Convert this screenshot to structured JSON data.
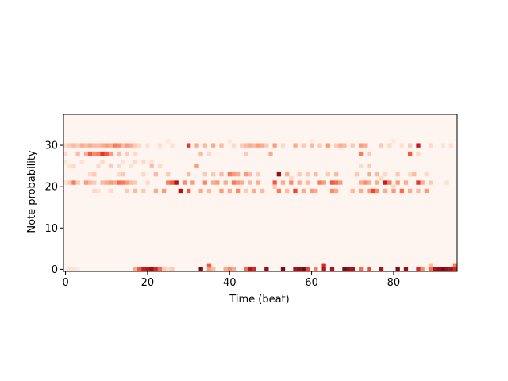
{
  "chart_data": {
    "type": "heatmap",
    "title": "",
    "xlabel": "Time (beat)",
    "ylabel": "Note probability",
    "x_ticks": [
      0,
      20,
      40,
      60,
      80
    ],
    "y_ticks": [
      0,
      10,
      20,
      30
    ],
    "xlim": [
      -0.5,
      95.5
    ],
    "ylim": [
      -0.5,
      37.5
    ],
    "colormap": "Reds",
    "background_color": "#fff5f0",
    "n_steps": 96,
    "n_notes": 38,
    "cells": [
      {
        "x": 1,
        "y": 0,
        "v": 0.12
      },
      {
        "x": 2,
        "y": 0,
        "v": 0.1
      },
      {
        "x": 3,
        "y": 0,
        "v": 0.08
      },
      {
        "x": 17,
        "y": 0,
        "v": 0.3
      },
      {
        "x": 18,
        "y": 0,
        "v": 0.55
      },
      {
        "x": 19,
        "y": 0,
        "v": 0.75
      },
      {
        "x": 20,
        "y": 0,
        "v": 0.8
      },
      {
        "x": 21,
        "y": 0,
        "v": 0.9
      },
      {
        "x": 22,
        "y": 0,
        "v": 0.7
      },
      {
        "x": 23,
        "y": 0,
        "v": 0.5
      },
      {
        "x": 24,
        "y": 0,
        "v": 0.2
      },
      {
        "x": 25,
        "y": 0,
        "v": 0.15
      },
      {
        "x": 26,
        "y": 0,
        "v": 0.2
      },
      {
        "x": 33,
        "y": 0,
        "v": 0.95
      },
      {
        "x": 35,
        "y": 0,
        "v": 0.35
      },
      {
        "x": 36,
        "y": 0,
        "v": 0.25
      },
      {
        "x": 39,
        "y": 0,
        "v": 0.3
      },
      {
        "x": 40,
        "y": 0,
        "v": 0.4
      },
      {
        "x": 41,
        "y": 0,
        "v": 0.3
      },
      {
        "x": 44,
        "y": 0,
        "v": 0.5
      },
      {
        "x": 45,
        "y": 0,
        "v": 0.8
      },
      {
        "x": 46,
        "y": 0,
        "v": 0.7
      },
      {
        "x": 49,
        "y": 0,
        "v": 0.9
      },
      {
        "x": 53,
        "y": 0,
        "v": 0.95
      },
      {
        "x": 56,
        "y": 0,
        "v": 0.85
      },
      {
        "x": 57,
        "y": 0,
        "v": 0.9
      },
      {
        "x": 58,
        "y": 0,
        "v": 0.95
      },
      {
        "x": 59,
        "y": 0,
        "v": 0.6
      },
      {
        "x": 61,
        "y": 0,
        "v": 0.45
      },
      {
        "x": 63,
        "y": 0,
        "v": 0.8
      },
      {
        "x": 65,
        "y": 0,
        "v": 0.85
      },
      {
        "x": 68,
        "y": 0,
        "v": 0.95
      },
      {
        "x": 69,
        "y": 0,
        "v": 0.9
      },
      {
        "x": 70,
        "y": 0,
        "v": 0.85
      },
      {
        "x": 72,
        "y": 0,
        "v": 0.5
      },
      {
        "x": 74,
        "y": 0,
        "v": 0.6
      },
      {
        "x": 77,
        "y": 0,
        "v": 0.85
      },
      {
        "x": 81,
        "y": 0,
        "v": 0.95
      },
      {
        "x": 83,
        "y": 0,
        "v": 0.9
      },
      {
        "x": 86,
        "y": 0,
        "v": 0.7
      },
      {
        "x": 87,
        "y": 0,
        "v": 0.4
      },
      {
        "x": 89,
        "y": 0,
        "v": 0.5
      },
      {
        "x": 90,
        "y": 0,
        "v": 0.85
      },
      {
        "x": 91,
        "y": 0,
        "v": 0.9
      },
      {
        "x": 92,
        "y": 0,
        "v": 0.95
      },
      {
        "x": 93,
        "y": 0,
        "v": 0.9
      },
      {
        "x": 94,
        "y": 0,
        "v": 0.85
      },
      {
        "x": 95,
        "y": 0,
        "v": 0.7
      },
      {
        "x": 35,
        "y": 1,
        "v": 0.55
      },
      {
        "x": 63,
        "y": 1,
        "v": 0.7
      },
      {
        "x": 89,
        "y": 1,
        "v": 0.25
      },
      {
        "x": 95,
        "y": 1,
        "v": 0.45
      },
      {
        "x": 7,
        "y": 19,
        "v": 0.15
      },
      {
        "x": 8,
        "y": 19,
        "v": 0.12
      },
      {
        "x": 11,
        "y": 19,
        "v": 0.15
      },
      {
        "x": 15,
        "y": 19,
        "v": 0.2
      },
      {
        "x": 17,
        "y": 19,
        "v": 0.25
      },
      {
        "x": 19,
        "y": 19,
        "v": 0.2
      },
      {
        "x": 22,
        "y": 19,
        "v": 0.3
      },
      {
        "x": 24,
        "y": 19,
        "v": 0.35
      },
      {
        "x": 28,
        "y": 19,
        "v": 0.85
      },
      {
        "x": 30,
        "y": 19,
        "v": 0.55
      },
      {
        "x": 33,
        "y": 19,
        "v": 0.3
      },
      {
        "x": 35,
        "y": 19,
        "v": 0.25
      },
      {
        "x": 38,
        "y": 19,
        "v": 0.35
      },
      {
        "x": 40,
        "y": 19,
        "v": 0.3
      },
      {
        "x": 42,
        "y": 19,
        "v": 0.4
      },
      {
        "x": 44,
        "y": 19,
        "v": 0.2
      },
      {
        "x": 46,
        "y": 19,
        "v": 0.3
      },
      {
        "x": 48,
        "y": 19,
        "v": 0.25
      },
      {
        "x": 52,
        "y": 19,
        "v": 0.45
      },
      {
        "x": 54,
        "y": 19,
        "v": 0.25
      },
      {
        "x": 56,
        "y": 19,
        "v": 0.6
      },
      {
        "x": 58,
        "y": 19,
        "v": 0.3
      },
      {
        "x": 60,
        "y": 19,
        "v": 0.35
      },
      {
        "x": 61,
        "y": 19,
        "v": 0.3
      },
      {
        "x": 65,
        "y": 19,
        "v": 0.4
      },
      {
        "x": 66,
        "y": 19,
        "v": 0.3
      },
      {
        "x": 70,
        "y": 19,
        "v": 0.25
      },
      {
        "x": 72,
        "y": 19,
        "v": 0.3
      },
      {
        "x": 74,
        "y": 19,
        "v": 0.35
      },
      {
        "x": 75,
        "y": 19,
        "v": 0.6
      },
      {
        "x": 76,
        "y": 19,
        "v": 0.4
      },
      {
        "x": 78,
        "y": 19,
        "v": 0.3
      },
      {
        "x": 80,
        "y": 19,
        "v": 0.35
      },
      {
        "x": 82,
        "y": 19,
        "v": 0.5
      },
      {
        "x": 84,
        "y": 19,
        "v": 0.3
      },
      {
        "x": 86,
        "y": 19,
        "v": 0.25
      },
      {
        "x": 88,
        "y": 19,
        "v": 0.35
      },
      {
        "x": 0,
        "y": 21,
        "v": 0.12
      },
      {
        "x": 1,
        "y": 21,
        "v": 0.2
      },
      {
        "x": 2,
        "y": 21,
        "v": 0.45
      },
      {
        "x": 3,
        "y": 21,
        "v": 0.2
      },
      {
        "x": 5,
        "y": 21,
        "v": 0.35
      },
      {
        "x": 6,
        "y": 21,
        "v": 0.25
      },
      {
        "x": 7,
        "y": 21,
        "v": 0.2
      },
      {
        "x": 9,
        "y": 21,
        "v": 0.25
      },
      {
        "x": 10,
        "y": 21,
        "v": 0.3
      },
      {
        "x": 11,
        "y": 21,
        "v": 0.35
      },
      {
        "x": 12,
        "y": 21,
        "v": 0.3
      },
      {
        "x": 13,
        "y": 21,
        "v": 0.5
      },
      {
        "x": 14,
        "y": 21,
        "v": 0.45
      },
      {
        "x": 15,
        "y": 21,
        "v": 0.35
      },
      {
        "x": 16,
        "y": 21,
        "v": 0.25
      },
      {
        "x": 17,
        "y": 21,
        "v": 0.2
      },
      {
        "x": 20,
        "y": 21,
        "v": 0.15
      },
      {
        "x": 25,
        "y": 21,
        "v": 0.45
      },
      {
        "x": 26,
        "y": 21,
        "v": 0.55
      },
      {
        "x": 27,
        "y": 21,
        "v": 0.85
      },
      {
        "x": 29,
        "y": 21,
        "v": 0.4
      },
      {
        "x": 31,
        "y": 21,
        "v": 0.35
      },
      {
        "x": 34,
        "y": 21,
        "v": 0.4
      },
      {
        "x": 36,
        "y": 21,
        "v": 0.3
      },
      {
        "x": 37,
        "y": 21,
        "v": 0.35
      },
      {
        "x": 39,
        "y": 21,
        "v": 0.3
      },
      {
        "x": 41,
        "y": 21,
        "v": 0.45
      },
      {
        "x": 42,
        "y": 21,
        "v": 0.35
      },
      {
        "x": 43,
        "y": 21,
        "v": 0.3
      },
      {
        "x": 45,
        "y": 21,
        "v": 0.25
      },
      {
        "x": 47,
        "y": 21,
        "v": 0.3
      },
      {
        "x": 51,
        "y": 21,
        "v": 0.55
      },
      {
        "x": 53,
        "y": 21,
        "v": 0.3
      },
      {
        "x": 55,
        "y": 21,
        "v": 0.4
      },
      {
        "x": 57,
        "y": 21,
        "v": 0.3
      },
      {
        "x": 59,
        "y": 21,
        "v": 0.25
      },
      {
        "x": 62,
        "y": 21,
        "v": 0.45
      },
      {
        "x": 63,
        "y": 21,
        "v": 0.35
      },
      {
        "x": 65,
        "y": 21,
        "v": 0.55
      },
      {
        "x": 66,
        "y": 21,
        "v": 0.5
      },
      {
        "x": 67,
        "y": 21,
        "v": 0.35
      },
      {
        "x": 72,
        "y": 21,
        "v": 0.3
      },
      {
        "x": 73,
        "y": 21,
        "v": 0.4
      },
      {
        "x": 74,
        "y": 21,
        "v": 0.3
      },
      {
        "x": 76,
        "y": 21,
        "v": 0.3
      },
      {
        "x": 78,
        "y": 21,
        "v": 0.75
      },
      {
        "x": 79,
        "y": 21,
        "v": 0.45
      },
      {
        "x": 81,
        "y": 21,
        "v": 0.35
      },
      {
        "x": 83,
        "y": 21,
        "v": 0.3
      },
      {
        "x": 86,
        "y": 21,
        "v": 0.65
      },
      {
        "x": 87,
        "y": 21,
        "v": 0.3
      },
      {
        "x": 89,
        "y": 21,
        "v": 0.2
      },
      {
        "x": 93,
        "y": 21,
        "v": 0.12
      },
      {
        "x": 51,
        "y": 20,
        "v": 0.2
      },
      {
        "x": 80,
        "y": 20,
        "v": 0.15
      },
      {
        "x": 55,
        "y": 22,
        "v": 0.15
      },
      {
        "x": 77,
        "y": 22,
        "v": 0.15
      },
      {
        "x": 6,
        "y": 23,
        "v": 0.15
      },
      {
        "x": 7,
        "y": 23,
        "v": 0.2
      },
      {
        "x": 13,
        "y": 23,
        "v": 0.15
      },
      {
        "x": 14,
        "y": 23,
        "v": 0.2
      },
      {
        "x": 19,
        "y": 23,
        "v": 0.15
      },
      {
        "x": 22,
        "y": 23,
        "v": 0.25
      },
      {
        "x": 25,
        "y": 23,
        "v": 0.2
      },
      {
        "x": 30,
        "y": 23,
        "v": 0.25
      },
      {
        "x": 34,
        "y": 23,
        "v": 0.2
      },
      {
        "x": 36,
        "y": 23,
        "v": 0.2
      },
      {
        "x": 38,
        "y": 23,
        "v": 0.25
      },
      {
        "x": 40,
        "y": 23,
        "v": 0.45
      },
      {
        "x": 41,
        "y": 23,
        "v": 0.35
      },
      {
        "x": 42,
        "y": 23,
        "v": 0.3
      },
      {
        "x": 44,
        "y": 23,
        "v": 0.35
      },
      {
        "x": 45,
        "y": 23,
        "v": 0.25
      },
      {
        "x": 47,
        "y": 23,
        "v": 0.2
      },
      {
        "x": 52,
        "y": 23,
        "v": 0.9
      },
      {
        "x": 54,
        "y": 23,
        "v": 0.3
      },
      {
        "x": 57,
        "y": 23,
        "v": 0.2
      },
      {
        "x": 59,
        "y": 23,
        "v": 0.2
      },
      {
        "x": 61,
        "y": 23,
        "v": 0.25
      },
      {
        "x": 64,
        "y": 23,
        "v": 0.2
      },
      {
        "x": 66,
        "y": 23,
        "v": 0.25
      },
      {
        "x": 71,
        "y": 23,
        "v": 0.2
      },
      {
        "x": 74,
        "y": 23,
        "v": 0.3
      },
      {
        "x": 76,
        "y": 23,
        "v": 0.25
      },
      {
        "x": 78,
        "y": 23,
        "v": 0.15
      },
      {
        "x": 81,
        "y": 23,
        "v": 0.2
      },
      {
        "x": 84,
        "y": 23,
        "v": 0.15
      },
      {
        "x": 85,
        "y": 23,
        "v": 0.25
      },
      {
        "x": 88,
        "y": 23,
        "v": 0.15
      },
      {
        "x": 1,
        "y": 25,
        "v": 0.12
      },
      {
        "x": 2,
        "y": 25,
        "v": 0.15
      },
      {
        "x": 8,
        "y": 25,
        "v": 0.15
      },
      {
        "x": 11,
        "y": 25,
        "v": 0.2
      },
      {
        "x": 13,
        "y": 25,
        "v": 0.15
      },
      {
        "x": 16,
        "y": 25,
        "v": 0.12
      },
      {
        "x": 21,
        "y": 25,
        "v": 0.25
      },
      {
        "x": 23,
        "y": 25,
        "v": 0.15
      },
      {
        "x": 32,
        "y": 25,
        "v": 0.35
      },
      {
        "x": 72,
        "y": 25,
        "v": 0.15
      },
      {
        "x": 74,
        "y": 25,
        "v": 0.2
      },
      {
        "x": 0,
        "y": 26,
        "v": 0.1
      },
      {
        "x": 4,
        "y": 26,
        "v": 0.12
      },
      {
        "x": 9,
        "y": 26,
        "v": 0.15
      },
      {
        "x": 14,
        "y": 26,
        "v": 0.12
      },
      {
        "x": 17,
        "y": 26,
        "v": 0.15
      },
      {
        "x": 19,
        "y": 26,
        "v": 0.15
      },
      {
        "x": 21,
        "y": 26,
        "v": 0.12
      },
      {
        "x": 0,
        "y": 28,
        "v": 0.15
      },
      {
        "x": 3,
        "y": 28,
        "v": 0.25
      },
      {
        "x": 5,
        "y": 28,
        "v": 0.3
      },
      {
        "x": 6,
        "y": 28,
        "v": 0.55
      },
      {
        "x": 7,
        "y": 28,
        "v": 0.4
      },
      {
        "x": 8,
        "y": 28,
        "v": 0.45
      },
      {
        "x": 9,
        "y": 28,
        "v": 0.65
      },
      {
        "x": 10,
        "y": 28,
        "v": 0.55
      },
      {
        "x": 11,
        "y": 28,
        "v": 0.35
      },
      {
        "x": 13,
        "y": 28,
        "v": 0.25
      },
      {
        "x": 15,
        "y": 28,
        "v": 0.2
      },
      {
        "x": 17,
        "y": 28,
        "v": 0.15
      },
      {
        "x": 33,
        "y": 28,
        "v": 0.25
      },
      {
        "x": 35,
        "y": 28,
        "v": 0.15
      },
      {
        "x": 44,
        "y": 28,
        "v": 0.2
      },
      {
        "x": 50,
        "y": 28,
        "v": 0.3
      },
      {
        "x": 72,
        "y": 28,
        "v": 0.45
      },
      {
        "x": 74,
        "y": 28,
        "v": 0.2
      },
      {
        "x": 84,
        "y": 28,
        "v": 0.55
      },
      {
        "x": 86,
        "y": 28,
        "v": 0.15
      },
      {
        "x": 0,
        "y": 30,
        "v": 0.15
      },
      {
        "x": 1,
        "y": 30,
        "v": 0.2
      },
      {
        "x": 2,
        "y": 30,
        "v": 0.25
      },
      {
        "x": 3,
        "y": 30,
        "v": 0.2
      },
      {
        "x": 4,
        "y": 30,
        "v": 0.3
      },
      {
        "x": 5,
        "y": 30,
        "v": 0.25
      },
      {
        "x": 6,
        "y": 30,
        "v": 0.3
      },
      {
        "x": 7,
        "y": 30,
        "v": 0.25
      },
      {
        "x": 8,
        "y": 30,
        "v": 0.25
      },
      {
        "x": 9,
        "y": 30,
        "v": 0.3
      },
      {
        "x": 10,
        "y": 30,
        "v": 0.35
      },
      {
        "x": 11,
        "y": 30,
        "v": 0.3
      },
      {
        "x": 12,
        "y": 30,
        "v": 0.45
      },
      {
        "x": 13,
        "y": 30,
        "v": 0.4
      },
      {
        "x": 14,
        "y": 30,
        "v": 0.25
      },
      {
        "x": 15,
        "y": 30,
        "v": 0.35
      },
      {
        "x": 16,
        "y": 30,
        "v": 0.3
      },
      {
        "x": 17,
        "y": 30,
        "v": 0.2
      },
      {
        "x": 18,
        "y": 30,
        "v": 0.15
      },
      {
        "x": 20,
        "y": 30,
        "v": 0.12
      },
      {
        "x": 23,
        "y": 30,
        "v": 0.12
      },
      {
        "x": 26,
        "y": 30,
        "v": 0.12
      },
      {
        "x": 30,
        "y": 30,
        "v": 0.65
      },
      {
        "x": 32,
        "y": 30,
        "v": 0.3
      },
      {
        "x": 34,
        "y": 30,
        "v": 0.25
      },
      {
        "x": 36,
        "y": 30,
        "v": 0.3
      },
      {
        "x": 38,
        "y": 30,
        "v": 0.25
      },
      {
        "x": 41,
        "y": 30,
        "v": 0.15
      },
      {
        "x": 43,
        "y": 30,
        "v": 0.2
      },
      {
        "x": 44,
        "y": 30,
        "v": 0.25
      },
      {
        "x": 45,
        "y": 30,
        "v": 0.3
      },
      {
        "x": 46,
        "y": 30,
        "v": 0.25
      },
      {
        "x": 47,
        "y": 30,
        "v": 0.35
      },
      {
        "x": 48,
        "y": 30,
        "v": 0.3
      },
      {
        "x": 49,
        "y": 30,
        "v": 0.2
      },
      {
        "x": 51,
        "y": 30,
        "v": 0.35
      },
      {
        "x": 53,
        "y": 30,
        "v": 0.15
      },
      {
        "x": 56,
        "y": 30,
        "v": 0.3
      },
      {
        "x": 58,
        "y": 30,
        "v": 0.2
      },
      {
        "x": 60,
        "y": 30,
        "v": 0.25
      },
      {
        "x": 62,
        "y": 30,
        "v": 0.2
      },
      {
        "x": 64,
        "y": 30,
        "v": 0.35
      },
      {
        "x": 66,
        "y": 30,
        "v": 0.2
      },
      {
        "x": 67,
        "y": 30,
        "v": 0.3
      },
      {
        "x": 68,
        "y": 30,
        "v": 0.25
      },
      {
        "x": 70,
        "y": 30,
        "v": 0.2
      },
      {
        "x": 72,
        "y": 30,
        "v": 0.35
      },
      {
        "x": 73,
        "y": 30,
        "v": 0.3
      },
      {
        "x": 77,
        "y": 30,
        "v": 0.2
      },
      {
        "x": 79,
        "y": 30,
        "v": 0.15
      },
      {
        "x": 82,
        "y": 30,
        "v": 0.12
      },
      {
        "x": 84,
        "y": 30,
        "v": 0.2
      },
      {
        "x": 86,
        "y": 30,
        "v": 0.75
      },
      {
        "x": 89,
        "y": 30,
        "v": 0.15
      },
      {
        "x": 92,
        "y": 30,
        "v": 0.12
      },
      {
        "x": 94,
        "y": 30,
        "v": 0.12
      },
      {
        "x": 25,
        "y": 31,
        "v": 0.08
      },
      {
        "x": 40,
        "y": 31,
        "v": 0.08
      },
      {
        "x": 60,
        "y": 31,
        "v": 0.08
      },
      {
        "x": 80,
        "y": 31,
        "v": 0.08
      }
    ]
  }
}
